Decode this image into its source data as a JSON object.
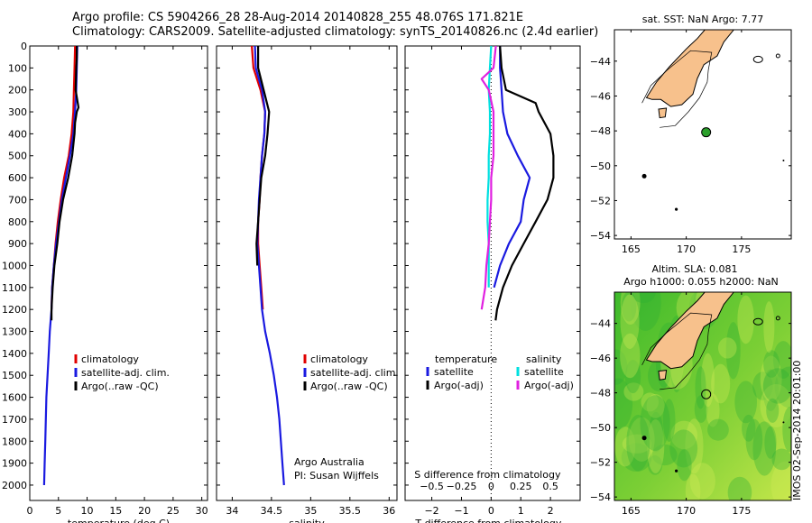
{
  "header": {
    "line1": "Argo profile: CS 5904266_28 28-Aug-2014 20140828_255 48.076S 171.821E",
    "line2": "Climatology: CARS2009. Satellite-adjusted climatology: synTS_20140826.nc (2.4d earlier)"
  },
  "colors": {
    "climatology": "#e00000",
    "satellite": "#1a1ae0",
    "argo": "#000000",
    "sal_satellite": "#00e0e0",
    "sal_argo": "#e020e0",
    "land": "#f7c18c",
    "sat_sea_a": "#3dba2b",
    "sat_sea_b": "#c4e64a"
  },
  "chart_data": [
    {
      "type": "line",
      "id": "temperature",
      "xlabel": "temperature (deg C)",
      "xlim": [
        0,
        31
      ],
      "xticks": [
        0,
        5,
        10,
        15,
        20,
        25,
        30
      ],
      "ylim": [
        0,
        2070
      ],
      "yticks": [
        0,
        100,
        200,
        300,
        400,
        500,
        600,
        700,
        800,
        900,
        1000,
        1100,
        1200,
        1300,
        1400,
        1500,
        1600,
        1700,
        1800,
        1900,
        2000
      ],
      "legend": [
        "climatology",
        "satellite-adj. clim.",
        "Argo(..raw -QC)"
      ],
      "series": [
        {
          "name": "climatology",
          "depth": [
            0,
            100,
            200,
            300,
            400,
            500,
            600,
            700,
            800,
            900,
            1000,
            1100,
            1200
          ],
          "values": [
            7.9,
            7.8,
            7.7,
            7.6,
            7.3,
            6.8,
            6.0,
            5.4,
            4.9,
            4.5,
            4.2,
            3.9,
            3.8
          ]
        },
        {
          "name": "satellite-adj. clim.",
          "depth": [
            0,
            100,
            200,
            300,
            400,
            500,
            600,
            700,
            800,
            900,
            1000,
            1100,
            1200,
            1300,
            1400,
            1500,
            1600,
            1700,
            1800,
            1900,
            2000
          ],
          "values": [
            8.3,
            8.2,
            8.1,
            7.9,
            7.6,
            7.0,
            6.3,
            5.6,
            5.1,
            4.6,
            4.2,
            3.9,
            3.8,
            3.5,
            3.3,
            3.1,
            2.9,
            2.8,
            2.7,
            2.6,
            2.5
          ]
        },
        {
          "name": "Argo(..raw -QC)",
          "depth": [
            0,
            50,
            100,
            200,
            280,
            300,
            350,
            400,
            500,
            600,
            700,
            800,
            900,
            1000,
            1100,
            1200,
            1250
          ],
          "values": [
            8.2,
            8.2,
            8.1,
            8.0,
            8.5,
            8.2,
            7.9,
            7.8,
            7.4,
            6.7,
            5.8,
            5.2,
            4.8,
            4.3,
            4.0,
            3.8,
            3.8
          ]
        }
      ]
    },
    {
      "type": "line",
      "id": "salinity",
      "xlabel": "salinity",
      "xlim": [
        33.8,
        36.1
      ],
      "xticks": [
        34,
        34.5,
        35,
        35.5,
        36
      ],
      "ylim": [
        0,
        2070
      ],
      "legend": [
        "climatology",
        "satellite-adj. clim.",
        "Argo(..raw -QC)"
      ],
      "annotation": [
        "Argo Australia",
        "PI: Susan Wijffels"
      ],
      "series": [
        {
          "name": "climatology",
          "depth": [
            0,
            100,
            200,
            300,
            400,
            500,
            600,
            700,
            800,
            900,
            1000,
            1100,
            1200
          ],
          "values": [
            34.25,
            34.27,
            34.36,
            34.42,
            34.41,
            34.38,
            34.36,
            34.35,
            34.33,
            34.33,
            34.35,
            34.37,
            34.39
          ]
        },
        {
          "name": "satellite-adj. clim.",
          "depth": [
            0,
            100,
            200,
            300,
            400,
            500,
            600,
            700,
            800,
            900,
            1000,
            1100,
            1200,
            1300,
            1400,
            1500,
            1600,
            1700,
            1800,
            1900,
            2000
          ],
          "values": [
            34.29,
            34.3,
            34.38,
            34.42,
            34.41,
            34.38,
            34.36,
            34.34,
            34.33,
            34.32,
            34.34,
            34.36,
            34.38,
            34.42,
            34.48,
            34.53,
            34.57,
            34.6,
            34.62,
            34.64,
            34.66
          ]
        },
        {
          "name": "Argo(..raw -QC)",
          "depth": [
            0,
            100,
            200,
            300,
            400,
            500,
            600,
            700,
            800,
            900,
            1000
          ],
          "values": [
            34.33,
            34.33,
            34.4,
            34.47,
            34.45,
            34.42,
            34.37,
            34.35,
            34.33,
            34.31,
            34.32
          ]
        }
      ]
    },
    {
      "type": "line",
      "id": "difference",
      "xlabel": "T difference from climatology",
      "xlabel2": "S difference from climatology",
      "xticks": [
        -2,
        -1,
        0,
        1,
        2
      ],
      "xticks2": [
        "-0.5",
        "-0.25",
        "0",
        "0.25",
        "0.5"
      ],
      "xlim": [
        -2.9,
        3.0
      ],
      "ylim": [
        0,
        2070
      ],
      "legend_temperature_title": "temperature",
      "legend_salinity_title": "salinity",
      "legend": [
        "satellite",
        "Argo(-adj)",
        "satellite",
        "Argo(-adj)"
      ],
      "series": [
        {
          "name": "temperature satellite",
          "depth": [
            0,
            100,
            200,
            300,
            400,
            500,
            600,
            700,
            800,
            900,
            1000,
            1100
          ],
          "values": [
            0.3,
            0.3,
            0.35,
            0.4,
            0.55,
            0.9,
            1.3,
            1.1,
            1.0,
            0.6,
            0.3,
            0.1
          ]
        },
        {
          "name": "temperature Argo(-adj)",
          "depth": [
            0,
            100,
            200,
            260,
            300,
            400,
            500,
            600,
            700,
            800,
            900,
            1000,
            1100,
            1200,
            1250
          ],
          "values": [
            0.3,
            0.35,
            0.5,
            1.5,
            1.6,
            2.0,
            2.1,
            2.1,
            1.9,
            1.5,
            1.1,
            0.7,
            0.4,
            0.2,
            0.15
          ]
        },
        {
          "name": "salinity satellite",
          "depth": [
            0,
            100,
            200,
            300,
            400,
            500,
            600,
            700,
            800,
            900,
            1000,
            1100
          ],
          "values": [
            0.0,
            -0.01,
            -0.02,
            -0.01,
            -0.01,
            -0.02,
            -0.02,
            -0.03,
            -0.03,
            -0.02,
            -0.02,
            -0.02
          ]
        },
        {
          "name": "salinity Argo(-adj)",
          "depth": [
            0,
            100,
            150,
            200,
            250,
            300,
            400,
            500,
            600,
            700,
            800,
            900,
            1000,
            1100,
            1200
          ],
          "values": [
            0.04,
            0.02,
            -0.08,
            -0.02,
            0.0,
            0.02,
            0.02,
            0.02,
            0.0,
            0.0,
            -0.01,
            -0.02,
            -0.04,
            -0.05,
            -0.08
          ]
        }
      ]
    }
  ],
  "map_top": {
    "title": "sat. SST: NaN Argo: 7.77",
    "xticks": [
      165,
      170,
      175
    ],
    "yticks": [
      -44,
      -46,
      -48,
      -50,
      -52,
      -54
    ],
    "xlim": [
      163.5,
      179.5
    ],
    "ylim": [
      -54.2,
      -42.2
    ],
    "float": {
      "lon": 171.8,
      "lat": -48.08
    }
  },
  "map_bottom": {
    "title1": "Altim. SLA: 0.081",
    "title2": "Argo h1000: 0.055 h2000: NaN",
    "xticks": [
      165,
      170,
      175
    ],
    "yticks": [
      -44,
      -46,
      -48,
      -50,
      -52,
      -54
    ],
    "xlim": [
      163.5,
      179.5
    ],
    "ylim": [
      -54.2,
      -42.2
    ],
    "float": {
      "lon": 171.8,
      "lat": -48.08
    }
  },
  "stamp": "IMOS 02-Sep-2014 20:01:00"
}
